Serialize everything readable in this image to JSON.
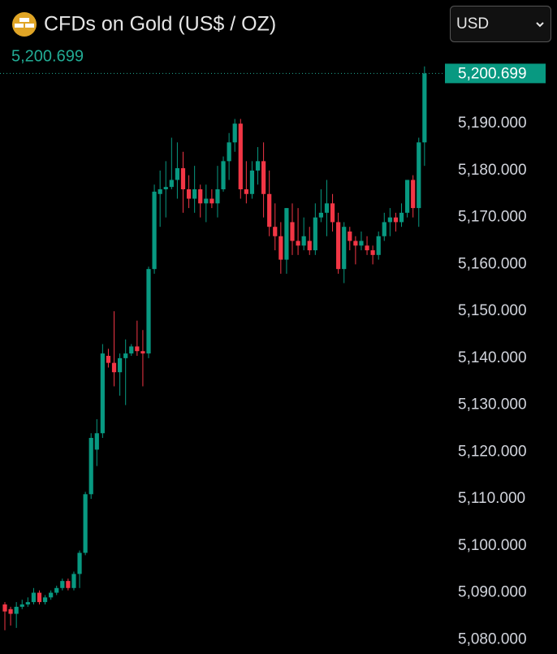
{
  "chart_data": {
    "type": "candlestick",
    "title": "CFDs on Gold (US$ / OZ)",
    "currency": "USD",
    "last_price": {
      "value": 5200.699,
      "label": "5,200.699"
    },
    "up_color": "#089981",
    "down_color": "#f23645",
    "open": [
      5087.5,
      5086.5,
      5085.5,
      5087,
      5087.5,
      5088,
      5090,
      5088,
      5089,
      5090,
      5091,
      5092.5,
      5091,
      5094,
      5098.5,
      5111,
      5120.5,
      5124,
      5140.5,
      5139,
      5137,
      5140,
      5141,
      5142.5,
      5141.5,
      5141,
      5159,
      5175,
      5176,
      5176.5,
      5178,
      5180.5,
      5176,
      5174,
      5176,
      5173,
      5174,
      5173,
      5176,
      5182,
      5186,
      5190,
      5176,
      5175,
      5180,
      5182,
      5175,
      5168,
      5166,
      5161,
      5169,
      5165,
      5164,
      5165,
      5163,
      5170,
      5171,
      5173,
      5169,
      5159,
      5167,
      5165,
      5164,
      5164,
      5163,
      5162,
      5166,
      5169,
      5170,
      5169,
      5171,
      5178,
      5172,
      5186
    ],
    "high": [
      5088,
      5087,
      5088,
      5088.5,
      5089,
      5091,
      5090.5,
      5089.5,
      5090.5,
      5091.5,
      5093,
      5093,
      5094.5,
      5099,
      5111.5,
      5124,
      5127,
      5143,
      5142,
      5150,
      5141,
      5144,
      5143,
      5148,
      5146,
      5159.5,
      5177,
      5180,
      5182,
      5187,
      5186,
      5184,
      5179,
      5181,
      5177,
      5177,
      5176,
      5181,
      5183,
      5188,
      5191,
      5191,
      5182,
      5182,
      5185,
      5186,
      5180,
      5173,
      5169,
      5172,
      5173,
      5172,
      5170,
      5168,
      5173,
      5176,
      5178,
      5175,
      5171,
      5169,
      5168,
      5166,
      5167,
      5166,
      5164,
      5167,
      5171,
      5172,
      5171,
      5173,
      5178,
      5179,
      5187,
      5202.2
    ],
    "low": [
      5082,
      5083,
      5082.5,
      5086.5,
      5087,
      5087.5,
      5087.5,
      5087.5,
      5088.5,
      5089.5,
      5090.5,
      5090.5,
      5090.5,
      5091,
      5098,
      5110,
      5117,
      5123,
      5138,
      5134,
      5132,
      5130,
      5140.5,
      5140.5,
      5134,
      5140,
      5158,
      5168,
      5170,
      5176,
      5174,
      5171,
      5172,
      5171,
      5170,
      5169,
      5172,
      5170,
      5175.5,
      5178,
      5184,
      5174,
      5173,
      5174,
      5177,
      5170,
      5166,
      5163,
      5158,
      5158,
      5162,
      5162,
      5163,
      5162,
      5162,
      5169,
      5166,
      5167,
      5158,
      5156,
      5163,
      5160,
      5163,
      5162,
      5160,
      5161,
      5165,
      5166,
      5167,
      5168,
      5170,
      5170,
      5168,
      5181
    ],
    "close": [
      5086,
      5085.5,
      5087,
      5087.5,
      5088,
      5090,
      5088,
      5089,
      5090,
      5091,
      5092.5,
      5091,
      5094,
      5098.5,
      5111,
      5123,
      5124,
      5141,
      5139,
      5137,
      5140,
      5141,
      5142.5,
      5141.5,
      5141,
      5159,
      5175.5,
      5176,
      5176.5,
      5178,
      5180.5,
      5176,
      5174,
      5176,
      5173,
      5174,
      5173,
      5176,
      5182,
      5186,
      5190,
      5176,
      5175,
      5180,
      5182,
      5175,
      5168,
      5166,
      5161,
      5172,
      5165,
      5164,
      5166,
      5163,
      5170,
      5171,
      5173,
      5169,
      5159,
      5168,
      5165,
      5164,
      5165,
      5163,
      5162,
      5166,
      5169,
      5170,
      5169,
      5171,
      5178,
      5172,
      5186,
      5200.699
    ],
    "ylim": [
      5077.8,
      5202.5
    ],
    "yticks": [
      {
        "value": 5080,
        "label": "5,080.000"
      },
      {
        "value": 5090,
        "label": "5,090.000"
      },
      {
        "value": 5100,
        "label": "5,100.000"
      },
      {
        "value": 5110,
        "label": "5,110.000"
      },
      {
        "value": 5120,
        "label": "5,120.000"
      },
      {
        "value": 5130,
        "label": "5,130.000"
      },
      {
        "value": 5140,
        "label": "5,140.000"
      },
      {
        "value": 5150,
        "label": "5,150.000"
      },
      {
        "value": 5160,
        "label": "5,160.000"
      },
      {
        "value": 5170,
        "label": "5,170.000"
      },
      {
        "value": 5180,
        "label": "5,180.000"
      },
      {
        "value": 5190,
        "label": "5,190.000"
      }
    ]
  }
}
